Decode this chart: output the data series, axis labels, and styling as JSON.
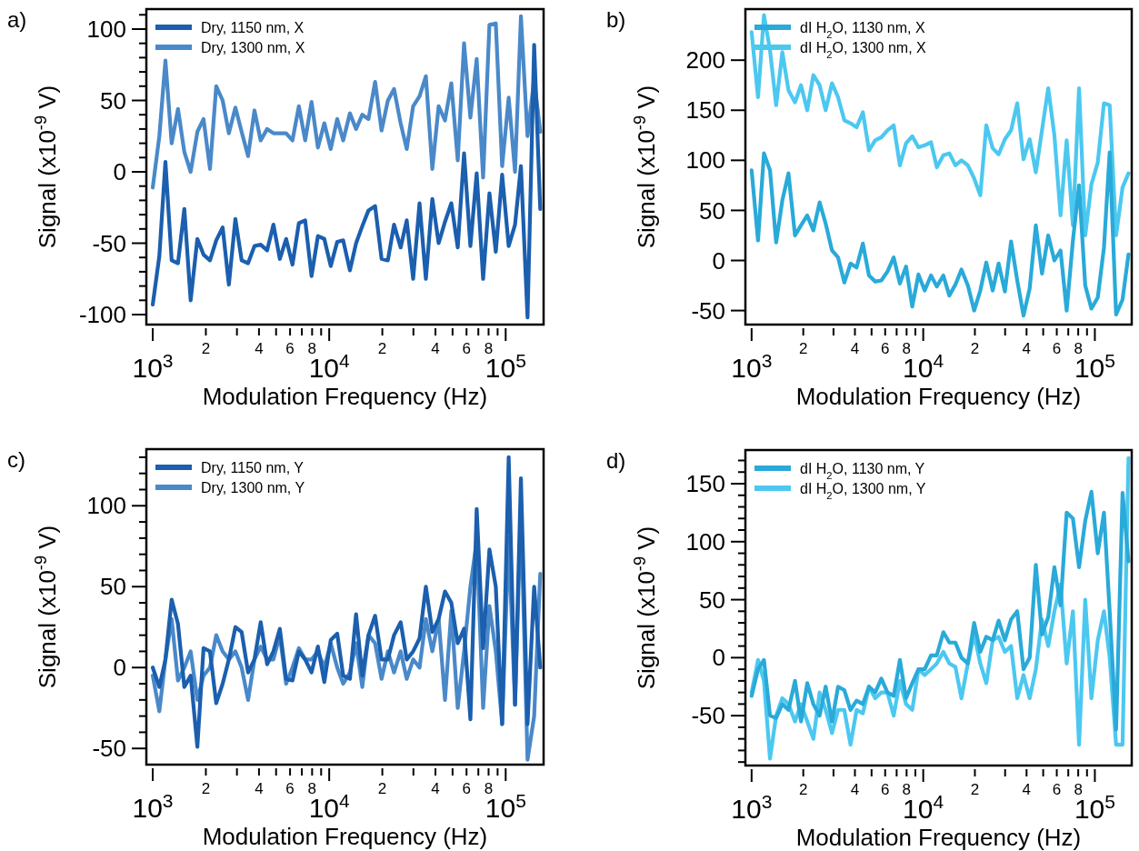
{
  "chart_data": [
    {
      "type": "line",
      "title": "a)",
      "xlabel": "Modulation Frequency (Hz)",
      "ylabel": "Signal (x10$^{-9}$ V)",
      "log": "x",
      "legend": "top left",
      "annotations": [
        "2",
        "4",
        "6",
        "8",
        "2",
        "4",
        "6",
        "8"
      ],
      "xlim": [
        920,
        164000
      ],
      "xticks": [
        {
          "value": 1000,
          "label": "10$^{3}$"
        },
        {
          "value": 2000,
          "label": null
        },
        {
          "value": 3000,
          "label": null
        },
        {
          "value": 4000,
          "label": null
        },
        {
          "value": 5000,
          "label": null
        },
        {
          "value": 6000,
          "label": null
        },
        {
          "value": 7000,
          "label": null
        },
        {
          "value": 8000,
          "label": null
        },
        {
          "value": 9000,
          "label": null
        },
        {
          "value": 10000,
          "label": "10$^{4}$"
        },
        {
          "value": 20000,
          "label": null
        },
        {
          "value": 30000,
          "label": null
        },
        {
          "value": 40000,
          "label": null
        },
        {
          "value": 50000,
          "label": null
        },
        {
          "value": 60000,
          "label": null
        },
        {
          "value": 70000,
          "label": null
        },
        {
          "value": 80000,
          "label": null
        },
        {
          "value": 90000,
          "label": null
        },
        {
          "value": 100000,
          "label": "10$^{5}$"
        }
      ],
      "ylim": [
        -107,
        114
      ],
      "yticks": [
        -100,
        {
          "value": -90,
          "label": null
        },
        {
          "value": -80,
          "label": null
        },
        {
          "value": -70,
          "label": null
        },
        {
          "value": -60,
          "label": null
        },
        -50,
        {
          "value": -40,
          "label": null
        },
        {
          "value": -30,
          "label": null
        },
        {
          "value": -20,
          "label": null
        },
        {
          "value": -10,
          "label": null
        },
        0,
        {
          "value": 10,
          "label": null
        },
        {
          "value": 20,
          "label": null
        },
        {
          "value": 30,
          "label": null
        },
        {
          "value": 40,
          "label": null
        },
        50,
        {
          "value": 60,
          "label": null
        },
        {
          "value": 70,
          "label": null
        },
        {
          "value": 80,
          "label": null
        },
        {
          "value": 90,
          "label": null
        },
        100,
        {
          "value": 110,
          "label": null
        }
      ],
      "x": [
        1000,
        1090,
        1180,
        1280,
        1390,
        1510,
        1640,
        1790,
        1940,
        2110,
        2290,
        2490,
        2700,
        2940,
        3190,
        3470,
        3770,
        4090,
        4450,
        4830,
        5250,
        5700,
        6190,
        6730,
        7310,
        7940,
        8630,
        9380,
        10200,
        11100,
        12000,
        13100,
        14200,
        15400,
        16700,
        18200,
        19800,
        21500,
        23300,
        25400,
        27500,
        29900,
        32500,
        35300,
        38400,
        41700,
        45300,
        49200,
        53500,
        58100,
        63100,
        68500,
        74500,
        80900,
        87900,
        95500,
        104000,
        113000,
        122000,
        133000,
        145000,
        157000
      ],
      "series": [
        {
          "name": "Dry, 1150 nm, X",
          "color": "#1b5fae",
          "values": [
            -93,
            -59,
            7,
            -62,
            -64,
            -26,
            -90,
            -47,
            -58,
            -62,
            -48,
            -39,
            -79,
            -33,
            -62,
            -64,
            -52,
            -51,
            -55,
            -37,
            -61,
            -47,
            -65,
            -36,
            -34,
            -73,
            -45,
            -47,
            -66,
            -49,
            -48,
            -69,
            -50,
            -38,
            -27,
            -24,
            -61,
            -62,
            -37,
            -53,
            -34,
            -75,
            -22,
            -75,
            -19,
            -50,
            -35,
            -22,
            -53,
            13,
            -52,
            -1,
            -75,
            -15,
            -56,
            -2,
            -52,
            -37,
            4,
            -102,
            89,
            -26
          ]
        },
        {
          "name": "Dry, 1300 nm, X",
          "color": "#4a89c9",
          "values": [
            -11,
            25,
            78,
            20,
            44,
            14,
            0,
            28,
            37,
            2,
            60,
            50,
            27,
            45,
            28,
            11,
            43,
            22,
            30,
            27,
            27,
            27,
            22,
            46,
            22,
            49,
            17,
            34,
            16,
            37,
            22,
            41,
            30,
            40,
            37,
            63,
            29,
            50,
            58,
            34,
            16,
            46,
            53,
            67,
            2,
            46,
            36,
            62,
            8,
            90,
            38,
            79,
            -4,
            103,
            104,
            4,
            52,
            0,
            109,
            25,
            65,
            28
          ]
        }
      ]
    },
    {
      "type": "line",
      "title": "b)",
      "xlabel": "Modulation Frequency (Hz)",
      "ylabel": "Signal (x10$^{-9}$ V)",
      "log": "x",
      "legend": "top left",
      "annotations": [
        "2",
        "4",
        "6",
        "8",
        "2",
        "4",
        "6",
        "8"
      ],
      "xlim": [
        920,
        164000
      ],
      "xticks": [
        {
          "value": 1000,
          "label": "10$^{3}$"
        },
        {
          "value": 2000,
          "label": null
        },
        {
          "value": 3000,
          "label": null
        },
        {
          "value": 4000,
          "label": null
        },
        {
          "value": 5000,
          "label": null
        },
        {
          "value": 6000,
          "label": null
        },
        {
          "value": 7000,
          "label": null
        },
        {
          "value": 8000,
          "label": null
        },
        {
          "value": 9000,
          "label": null
        },
        {
          "value": 10000,
          "label": "10$^{4}$"
        },
        {
          "value": 20000,
          "label": null
        },
        {
          "value": 30000,
          "label": null
        },
        {
          "value": 40000,
          "label": null
        },
        {
          "value": 50000,
          "label": null
        },
        {
          "value": 60000,
          "label": null
        },
        {
          "value": 70000,
          "label": null
        },
        {
          "value": 80000,
          "label": null
        },
        {
          "value": 90000,
          "label": null
        },
        {
          "value": 100000,
          "label": "10$^{5}$"
        }
      ],
      "ylim": [
        -64,
        251
      ],
      "yticks": [
        -50,
        0,
        50,
        100,
        150,
        200
      ],
      "x": [
        1000,
        1090,
        1180,
        1280,
        1390,
        1510,
        1640,
        1790,
        1940,
        2110,
        2290,
        2490,
        2700,
        2940,
        3190,
        3470,
        3770,
        4090,
        4450,
        4830,
        5250,
        5700,
        6190,
        6730,
        7310,
        7940,
        8630,
        9380,
        10200,
        11100,
        12000,
        13100,
        14200,
        15400,
        16700,
        18200,
        19800,
        21500,
        23300,
        25400,
        27500,
        29900,
        32500,
        35300,
        38400,
        41700,
        45300,
        49200,
        53500,
        58100,
        63100,
        68500,
        74500,
        80900,
        87900,
        95500,
        104000,
        113000,
        122000,
        133000,
        145000,
        157000
      ],
      "series": [
        {
          "name": "dI H$_{2}$O, 1130 nm, X",
          "color": "#29aad9",
          "values": [
            90,
            20,
            107,
            90,
            18,
            60,
            87,
            25,
            35,
            45,
            30,
            58,
            37,
            10,
            3,
            -22,
            -3,
            -7,
            17,
            -15,
            -21,
            -20,
            -11,
            3,
            -23,
            -6,
            -46,
            -14,
            -30,
            -15,
            -26,
            -15,
            -35,
            -24,
            -9,
            -25,
            -50,
            -30,
            -2,
            -30,
            -3,
            -31,
            19,
            -20,
            -55,
            -28,
            35,
            -13,
            25,
            0,
            10,
            -50,
            20,
            75,
            -25,
            -48,
            -37,
            13,
            108,
            -54,
            -39,
            6
          ]
        },
        {
          "name": "dI H$_{2}$O, 1300 nm, X",
          "color": "#4cc8f0",
          "values": [
            228,
            163,
            245,
            210,
            155,
            208,
            170,
            158,
            175,
            150,
            185,
            175,
            150,
            177,
            163,
            140,
            137,
            133,
            148,
            110,
            120,
            123,
            130,
            135,
            95,
            117,
            124,
            113,
            115,
            118,
            93,
            105,
            107,
            95,
            100,
            95,
            82,
            65,
            135,
            112,
            106,
            121,
            130,
            157,
            101,
            121,
            88,
            130,
            172,
            125,
            45,
            120,
            35,
            172,
            25,
            76,
            98,
            157,
            155,
            25,
            73,
            87
          ]
        }
      ]
    },
    {
      "type": "line",
      "title": "c)",
      "xlabel": "Modulation Frequency (Hz)",
      "ylabel": "Signal (x10$^{-9}$ V)",
      "log": "x",
      "legend": "top left",
      "annotations": [
        "2",
        "4",
        "6",
        "8",
        "2",
        "4",
        "6",
        "8"
      ],
      "xlim": [
        920,
        164000
      ],
      "xticks": [
        {
          "value": 1000,
          "label": "10$^{3}$"
        },
        {
          "value": 2000,
          "label": null
        },
        {
          "value": 3000,
          "label": null
        },
        {
          "value": 4000,
          "label": null
        },
        {
          "value": 5000,
          "label": null
        },
        {
          "value": 6000,
          "label": null
        },
        {
          "value": 7000,
          "label": null
        },
        {
          "value": 8000,
          "label": null
        },
        {
          "value": 9000,
          "label": null
        },
        {
          "value": 10000,
          "label": "10$^{4}$"
        },
        {
          "value": 20000,
          "label": null
        },
        {
          "value": 30000,
          "label": null
        },
        {
          "value": 40000,
          "label": null
        },
        {
          "value": 50000,
          "label": null
        },
        {
          "value": 60000,
          "label": null
        },
        {
          "value": 70000,
          "label": null
        },
        {
          "value": 80000,
          "label": null
        },
        {
          "value": 90000,
          "label": null
        },
        {
          "value": 100000,
          "label": "10$^{5}$"
        }
      ],
      "ylim": [
        -60,
        135
      ],
      "yticks": [
        -50,
        {
          "value": -40,
          "label": null
        },
        {
          "value": -30,
          "label": null
        },
        {
          "value": -20,
          "label": null
        },
        {
          "value": -10,
          "label": null
        },
        0,
        {
          "value": 10,
          "label": null
        },
        {
          "value": 20,
          "label": null
        },
        {
          "value": 30,
          "label": null
        },
        {
          "value": 40,
          "label": null
        },
        50,
        {
          "value": 60,
          "label": null
        },
        {
          "value": 70,
          "label": null
        },
        {
          "value": 80,
          "label": null
        },
        {
          "value": 90,
          "label": null
        },
        100,
        {
          "value": 110,
          "label": null
        },
        {
          "value": 120,
          "label": null
        },
        {
          "value": 130,
          "label": null
        }
      ],
      "x": [
        1000,
        1090,
        1180,
        1280,
        1390,
        1510,
        1640,
        1790,
        1940,
        2110,
        2290,
        2490,
        2700,
        2940,
        3190,
        3470,
        3770,
        4090,
        4450,
        4830,
        5250,
        5700,
        6190,
        6730,
        7310,
        7940,
        8630,
        9380,
        10200,
        11100,
        12000,
        13100,
        14200,
        15400,
        16700,
        18200,
        19800,
        21500,
        23300,
        25400,
        27500,
        29900,
        32500,
        35300,
        38400,
        41700,
        45300,
        49200,
        53500,
        58100,
        63100,
        68500,
        74500,
        80900,
        87900,
        95500,
        104000,
        113000,
        122000,
        133000,
        145000,
        157000
      ],
      "series": [
        {
          "name": "Dry, 1150 nm, Y",
          "color": "#1b5fae",
          "values": [
            0,
            -12,
            5,
            42,
            27,
            -12,
            -5,
            -49,
            12,
            10,
            -22,
            -10,
            5,
            25,
            22,
            -3,
            5,
            28,
            2,
            10,
            24,
            -7,
            -8,
            10,
            5,
            -3,
            13,
            -9,
            17,
            21,
            -5,
            -7,
            33,
            -5,
            20,
            32,
            5,
            5,
            20,
            28,
            5,
            10,
            18,
            50,
            22,
            30,
            47,
            40,
            15,
            24,
            -32,
            98,
            12,
            73,
            50,
            -35,
            130,
            -23,
            117,
            -35,
            50,
            0
          ]
        },
        {
          "name": "Dry, 1300 nm, Y",
          "color": "#4a89c9",
          "values": [
            -5,
            -27,
            5,
            30,
            -8,
            0,
            10,
            -20,
            -5,
            0,
            20,
            10,
            5,
            10,
            0,
            -20,
            5,
            13,
            5,
            5,
            20,
            -10,
            0,
            12,
            5,
            5,
            10,
            0,
            15,
            0,
            -10,
            -3,
            15,
            -12,
            20,
            15,
            -7,
            10,
            -3,
            10,
            -7,
            5,
            0,
            30,
            10,
            30,
            -20,
            35,
            -25,
            10,
            50,
            78,
            -25,
            38,
            10,
            -35,
            80,
            -23,
            98,
            -57,
            -30,
            58
          ]
        }
      ]
    },
    {
      "type": "line",
      "title": "d)",
      "xlabel": "Modulation Frequency (Hz)",
      "ylabel": "Signal (x10$^{-9}$ V)",
      "log": "x",
      "legend": "top left",
      "annotations": [
        "2",
        "4",
        "6",
        "8",
        "2",
        "4",
        "6",
        "8"
      ],
      "xlim": [
        920,
        164000
      ],
      "xticks": [
        {
          "value": 1000,
          "label": "10$^{3}$"
        },
        {
          "value": 2000,
          "label": null
        },
        {
          "value": 3000,
          "label": null
        },
        {
          "value": 4000,
          "label": null
        },
        {
          "value": 5000,
          "label": null
        },
        {
          "value": 6000,
          "label": null
        },
        {
          "value": 7000,
          "label": null
        },
        {
          "value": 8000,
          "label": null
        },
        {
          "value": 9000,
          "label": null
        },
        {
          "value": 10000,
          "label": "10$^{4}$"
        },
        {
          "value": 20000,
          "label": null
        },
        {
          "value": 30000,
          "label": null
        },
        {
          "value": 40000,
          "label": null
        },
        {
          "value": 50000,
          "label": null
        },
        {
          "value": 60000,
          "label": null
        },
        {
          "value": 70000,
          "label": null
        },
        {
          "value": 80000,
          "label": null
        },
        {
          "value": 90000,
          "label": null
        },
        {
          "value": 100000,
          "label": "10$^{5}$"
        }
      ],
      "ylim": [
        -93,
        179
      ],
      "yticks": [
        {
          "value": -90,
          "label": null
        },
        {
          "value": -80,
          "label": null
        },
        {
          "value": -70,
          "label": null
        },
        {
          "value": -60,
          "label": null
        },
        -50,
        {
          "value": -40,
          "label": null
        },
        {
          "value": -30,
          "label": null
        },
        {
          "value": -20,
          "label": null
        },
        {
          "value": -10,
          "label": null
        },
        0,
        {
          "value": 10,
          "label": null
        },
        {
          "value": 20,
          "label": null
        },
        {
          "value": 30,
          "label": null
        },
        {
          "value": 40,
          "label": null
        },
        50,
        {
          "value": 60,
          "label": null
        },
        {
          "value": 70,
          "label": null
        },
        {
          "value": 80,
          "label": null
        },
        {
          "value": 90,
          "label": null
        },
        100,
        {
          "value": 110,
          "label": null
        },
        {
          "value": 120,
          "label": null
        },
        {
          "value": 130,
          "label": null
        },
        {
          "value": 140,
          "label": null
        },
        150,
        {
          "value": 160,
          "label": null
        },
        {
          "value": 170,
          "label": null
        }
      ],
      "x": [
        1000,
        1090,
        1180,
        1280,
        1390,
        1510,
        1640,
        1790,
        1940,
        2110,
        2290,
        2490,
        2700,
        2940,
        3190,
        3470,
        3770,
        4090,
        4450,
        4830,
        5250,
        5700,
        6190,
        6730,
        7310,
        7940,
        8630,
        9380,
        10200,
        11100,
        12000,
        13100,
        14200,
        15400,
        16700,
        18200,
        19800,
        21500,
        23300,
        25400,
        27500,
        29900,
        32500,
        35300,
        38400,
        41700,
        45300,
        49200,
        53500,
        58100,
        63100,
        68500,
        74500,
        80900,
        87900,
        95500,
        104000,
        113000,
        122000,
        133000,
        145000,
        157000
      ],
      "series": [
        {
          "name": "dI H$_{2}$O, 1130 nm, Y",
          "color": "#29aad9",
          "values": [
            -33,
            -10,
            -2,
            -50,
            -52,
            -40,
            -45,
            -20,
            -55,
            -22,
            -40,
            -50,
            -25,
            -55,
            -25,
            -28,
            -45,
            -37,
            -40,
            -25,
            -30,
            -18,
            -30,
            -33,
            -2,
            -35,
            -22,
            -10,
            -10,
            2,
            2,
            22,
            13,
            13,
            0,
            -5,
            30,
            5,
            18,
            15,
            32,
            15,
            33,
            40,
            -10,
            0,
            80,
            20,
            35,
            78,
            45,
            125,
            120,
            78,
            118,
            143,
            90,
            125,
            40,
            -62,
            142,
            83
          ]
        },
        {
          "name": "dI H$_{2}$O, 1300 nm, Y",
          "color": "#4cc8f0",
          "values": [
            -30,
            -2,
            -20,
            -87,
            -50,
            -35,
            -40,
            -55,
            -40,
            -55,
            -70,
            -30,
            -45,
            -65,
            -45,
            -45,
            -75,
            -45,
            -48,
            -25,
            -35,
            -30,
            -30,
            -50,
            -20,
            -40,
            -45,
            -10,
            -15,
            -10,
            -5,
            5,
            -5,
            -8,
            -35,
            -5,
            20,
            -5,
            -22,
            15,
            18,
            5,
            10,
            -35,
            -15,
            -35,
            -10,
            33,
            10,
            40,
            63,
            -5,
            40,
            -75,
            50,
            -35,
            15,
            40,
            0,
            -75,
            -75,
            172
          ]
        }
      ]
    }
  ]
}
